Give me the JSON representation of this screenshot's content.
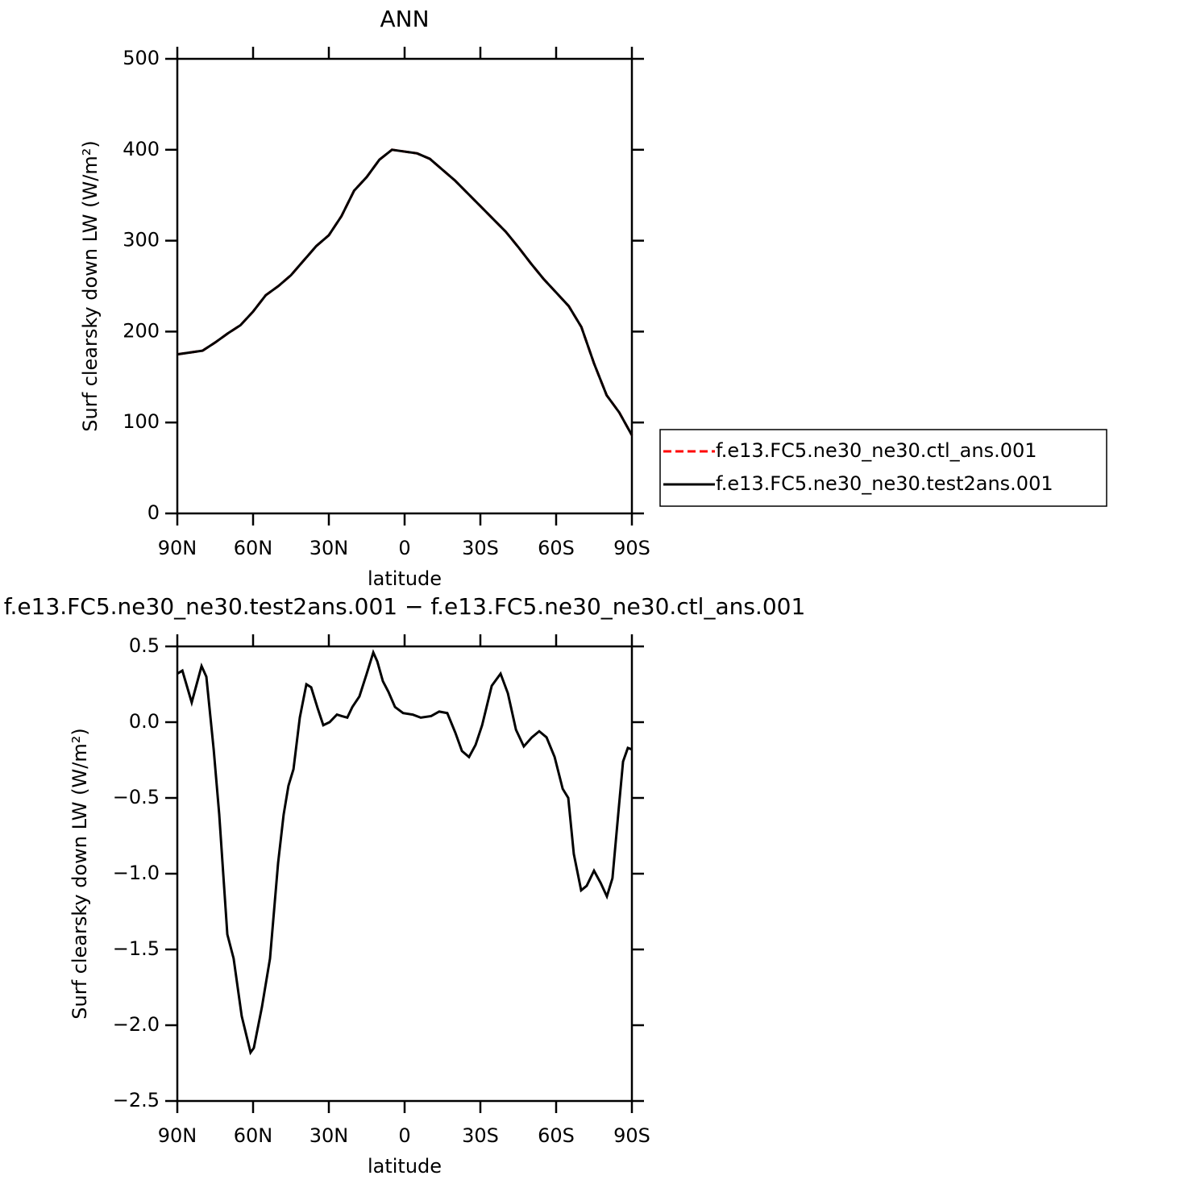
{
  "chart_data": [
    {
      "type": "line",
      "title": "ANN",
      "xlabel": "latitude",
      "ylabel": "Surf clearsky down LW (W/m²)",
      "xlim": [
        90,
        -90
      ],
      "ylim": [
        0,
        500
      ],
      "xticks": [
        {
          "value": 90,
          "label": "90N"
        },
        {
          "value": 60,
          "label": "60N"
        },
        {
          "value": 30,
          "label": "30N"
        },
        0,
        {
          "value": -30,
          "label": "30S"
        },
        {
          "value": -60,
          "label": "60S"
        },
        {
          "value": -90,
          "label": "90S"
        }
      ],
      "yticks": [
        0,
        100,
        200,
        300,
        400,
        500
      ],
      "legend": "right",
      "x": [
        90,
        85,
        80,
        75,
        70,
        65,
        60,
        55,
        50,
        45,
        40,
        35,
        30,
        25,
        20,
        15,
        10,
        5,
        0,
        -5,
        -10,
        -15,
        -20,
        -25,
        -30,
        -35,
        -40,
        -45,
        -50,
        -55,
        -60,
        -65,
        -70,
        -75,
        -80,
        -85,
        -90
      ],
      "series": [
        {
          "name": "f.e13.FC5.ne30_ne30.ctl_ans.001",
          "color": "#ff0000",
          "dashed": true,
          "values": [
            175,
            177,
            179,
            188,
            198,
            207,
            222,
            240,
            250,
            262,
            278,
            294,
            306,
            327,
            355,
            370,
            389,
            400,
            398,
            396,
            390,
            378,
            366,
            352,
            338,
            324,
            310,
            293,
            275,
            258,
            243,
            228,
            205,
            165,
            130,
            111,
            86
          ]
        },
        {
          "name": "f.e13.FC5.ne30_ne30.test2ans.001",
          "color": "#000000",
          "dashed": false,
          "values": [
            175,
            177,
            179,
            188,
            198,
            207,
            222,
            240,
            250,
            262,
            278,
            294,
            306,
            327,
            355,
            370,
            389,
            400,
            398,
            396,
            390,
            378,
            366,
            352,
            338,
            324,
            310,
            293,
            275,
            258,
            243,
            228,
            205,
            165,
            130,
            111,
            86
          ]
        }
      ]
    },
    {
      "type": "line",
      "title": "f.e13.FC5.ne30_ne30.test2ans.001 − f.e13.FC5.ne30_ne30.ctl_ans.001",
      "xlabel": "latitude",
      "ylabel": "Surf clearsky down LW (W/m²)",
      "xlim": [
        90,
        -90
      ],
      "ylim": [
        -2.5,
        0.5
      ],
      "xticks": [
        {
          "value": 90,
          "label": "90N"
        },
        {
          "value": 60,
          "label": "60N"
        },
        {
          "value": 30,
          "label": "30N"
        },
        0,
        {
          "value": -30,
          "label": "30S"
        },
        {
          "value": -60,
          "label": "60S"
        },
        {
          "value": -90,
          "label": "90S"
        }
      ],
      "yticks": [
        {
          "value": -2.5,
          "label": "−2.5"
        },
        {
          "value": -2,
          "label": "−2.0"
        },
        {
          "value": -1.5,
          "label": "−1.5"
        },
        {
          "value": -1,
          "label": "−1.0"
        },
        {
          "value": -0.5,
          "label": "−0.5"
        },
        {
          "value": 0,
          "label": "0.0"
        },
        0.5
      ],
      "color": "#000000",
      "x": [
        90,
        88,
        84.3,
        80.4,
        78.5,
        75.6,
        73.4,
        70.2,
        67.7,
        64.5,
        61,
        59.7,
        56.5,
        53.3,
        50.1,
        47.9,
        46,
        44,
        41.5,
        38.9,
        37,
        34.4,
        32.2,
        29.7,
        26.8,
        24.9,
        22.7,
        20.7,
        17.9,
        15,
        12.4,
        10.8,
        8.6,
        6.4,
        3.8,
        0.6,
        -3.2,
        -6.4,
        -10.5,
        -13.7,
        -16.9,
        -20.1,
        -22.7,
        -25.5,
        -28.1,
        -30.7,
        -34.5,
        -38,
        -40.9,
        -44.1,
        -47.2,
        -50.4,
        -53.3,
        -56.2,
        -59.4,
        -62.6,
        -64.8,
        -67,
        -69.9,
        -72.1,
        -75,
        -77.6,
        -80.1,
        -82.3,
        -84.9,
        -86.5,
        -88.4,
        -90
      ],
      "values": [
        0.32,
        0.34,
        0.13,
        0.37,
        0.3,
        -0.18,
        -0.61,
        -1.4,
        -1.56,
        -1.94,
        -2.18,
        -2.15,
        -1.88,
        -1.56,
        -0.93,
        -0.61,
        -0.42,
        -0.31,
        0.03,
        0.25,
        0.23,
        0.09,
        -0.02,
        0,
        0.05,
        0.04,
        0.03,
        0.1,
        0.17,
        0.32,
        0.46,
        0.4,
        0.27,
        0.2,
        0.1,
        0.06,
        0.05,
        0.03,
        0.04,
        0.07,
        0.06,
        -0.07,
        -0.19,
        -0.23,
        -0.15,
        -0.02,
        0.24,
        0.32,
        0.19,
        -0.05,
        -0.16,
        -0.1,
        -0.06,
        -0.1,
        -0.23,
        -0.44,
        -0.5,
        -0.87,
        -1.11,
        -1.08,
        -0.98,
        -1.06,
        -1.15,
        -1.03,
        -0.55,
        -0.26,
        -0.17,
        -0.18
      ]
    }
  ]
}
